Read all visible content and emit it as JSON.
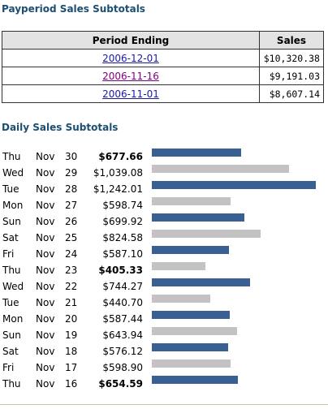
{
  "payperiod": {
    "title": "Payperiod Sales Subtotals",
    "headers": {
      "period": "Period Ending",
      "sales": "Sales"
    },
    "rows": [
      {
        "period": "2006-12-01",
        "sales": "$10,320.38",
        "visited": false
      },
      {
        "period": "2006-11-16",
        "sales": "$9,191.03",
        "visited": true
      },
      {
        "period": "2006-11-01",
        "sales": "$8,607.14",
        "visited": false
      }
    ]
  },
  "daily": {
    "title": "Daily Sales Subtotals",
    "bar_max": 1242.01,
    "colors": {
      "blue": "#3a6093",
      "gray": "#c2c2c2"
    },
    "rows": [
      {
        "dow": "Thu",
        "mon": "Nov",
        "day": "30",
        "amount": "$677.66",
        "value": 677.66,
        "bold": true,
        "color": "blue"
      },
      {
        "dow": "Wed",
        "mon": "Nov",
        "day": "29",
        "amount": "$1,039.08",
        "value": 1039.08,
        "bold": false,
        "color": "gray"
      },
      {
        "dow": "Tue",
        "mon": "Nov",
        "day": "28",
        "amount": "$1,242.01",
        "value": 1242.01,
        "bold": false,
        "color": "blue"
      },
      {
        "dow": "Mon",
        "mon": "Nov",
        "day": "27",
        "amount": "$598.74",
        "value": 598.74,
        "bold": false,
        "color": "gray"
      },
      {
        "dow": "Sun",
        "mon": "Nov",
        "day": "26",
        "amount": "$699.92",
        "value": 699.92,
        "bold": false,
        "color": "blue"
      },
      {
        "dow": "Sat",
        "mon": "Nov",
        "day": "25",
        "amount": "$824.58",
        "value": 824.58,
        "bold": false,
        "color": "gray"
      },
      {
        "dow": "Fri",
        "mon": "Nov",
        "day": "24",
        "amount": "$587.10",
        "value": 587.1,
        "bold": false,
        "color": "blue"
      },
      {
        "dow": "Thu",
        "mon": "Nov",
        "day": "23",
        "amount": "$405.33",
        "value": 405.33,
        "bold": true,
        "color": "gray"
      },
      {
        "dow": "Wed",
        "mon": "Nov",
        "day": "22",
        "amount": "$744.27",
        "value": 744.27,
        "bold": false,
        "color": "blue"
      },
      {
        "dow": "Tue",
        "mon": "Nov",
        "day": "21",
        "amount": "$440.70",
        "value": 440.7,
        "bold": false,
        "color": "gray"
      },
      {
        "dow": "Mon",
        "mon": "Nov",
        "day": "20",
        "amount": "$587.44",
        "value": 587.44,
        "bold": false,
        "color": "blue"
      },
      {
        "dow": "Sun",
        "mon": "Nov",
        "day": "19",
        "amount": "$643.94",
        "value": 643.94,
        "bold": false,
        "color": "gray"
      },
      {
        "dow": "Sat",
        "mon": "Nov",
        "day": "18",
        "amount": "$576.12",
        "value": 576.12,
        "bold": false,
        "color": "blue"
      },
      {
        "dow": "Fri",
        "mon": "Nov",
        "day": "17",
        "amount": "$598.90",
        "value": 598.9,
        "bold": false,
        "color": "gray"
      },
      {
        "dow": "Thu",
        "mon": "Nov",
        "day": "16",
        "amount": "$654.59",
        "value": 654.59,
        "bold": true,
        "color": "blue"
      }
    ]
  }
}
